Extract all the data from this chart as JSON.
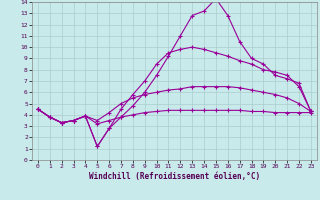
{
  "xlabel": "Windchill (Refroidissement éolien,°C)",
  "bg_color": "#c8eaea",
  "grid_color": "#aacccc",
  "line_color": "#990099",
  "xmin": 0,
  "xmax": 23,
  "ymin": 0,
  "ymax": 14,
  "x": [
    0,
    1,
    2,
    3,
    4,
    5,
    6,
    7,
    8,
    9,
    10,
    11,
    12,
    13,
    14,
    15,
    16,
    17,
    18,
    19,
    20,
    21,
    22,
    23
  ],
  "y_line1": [
    4.5,
    3.8,
    3.3,
    3.5,
    3.9,
    1.2,
    2.8,
    3.8,
    4.8,
    6.0,
    7.5,
    9.2,
    11.0,
    12.8,
    13.2,
    14.3,
    12.8,
    10.5,
    9.0,
    8.5,
    7.5,
    7.2,
    6.8,
    4.3
  ],
  "y_line2": [
    4.5,
    3.8,
    3.3,
    3.5,
    3.9,
    1.2,
    2.8,
    4.5,
    5.8,
    7.0,
    8.5,
    9.5,
    9.8,
    10.0,
    9.8,
    9.5,
    9.2,
    8.8,
    8.5,
    8.0,
    7.8,
    7.5,
    6.5,
    4.3
  ],
  "y_line3": [
    4.5,
    3.8,
    3.3,
    3.5,
    3.9,
    3.5,
    4.2,
    5.0,
    5.5,
    5.8,
    6.0,
    6.2,
    6.3,
    6.5,
    6.5,
    6.5,
    6.5,
    6.4,
    6.2,
    6.0,
    5.8,
    5.5,
    5.0,
    4.3
  ],
  "y_line4": [
    4.5,
    3.8,
    3.3,
    3.5,
    3.9,
    3.2,
    3.5,
    3.8,
    4.0,
    4.2,
    4.3,
    4.4,
    4.4,
    4.4,
    4.4,
    4.4,
    4.4,
    4.4,
    4.3,
    4.3,
    4.2,
    4.2,
    4.2,
    4.2
  ]
}
